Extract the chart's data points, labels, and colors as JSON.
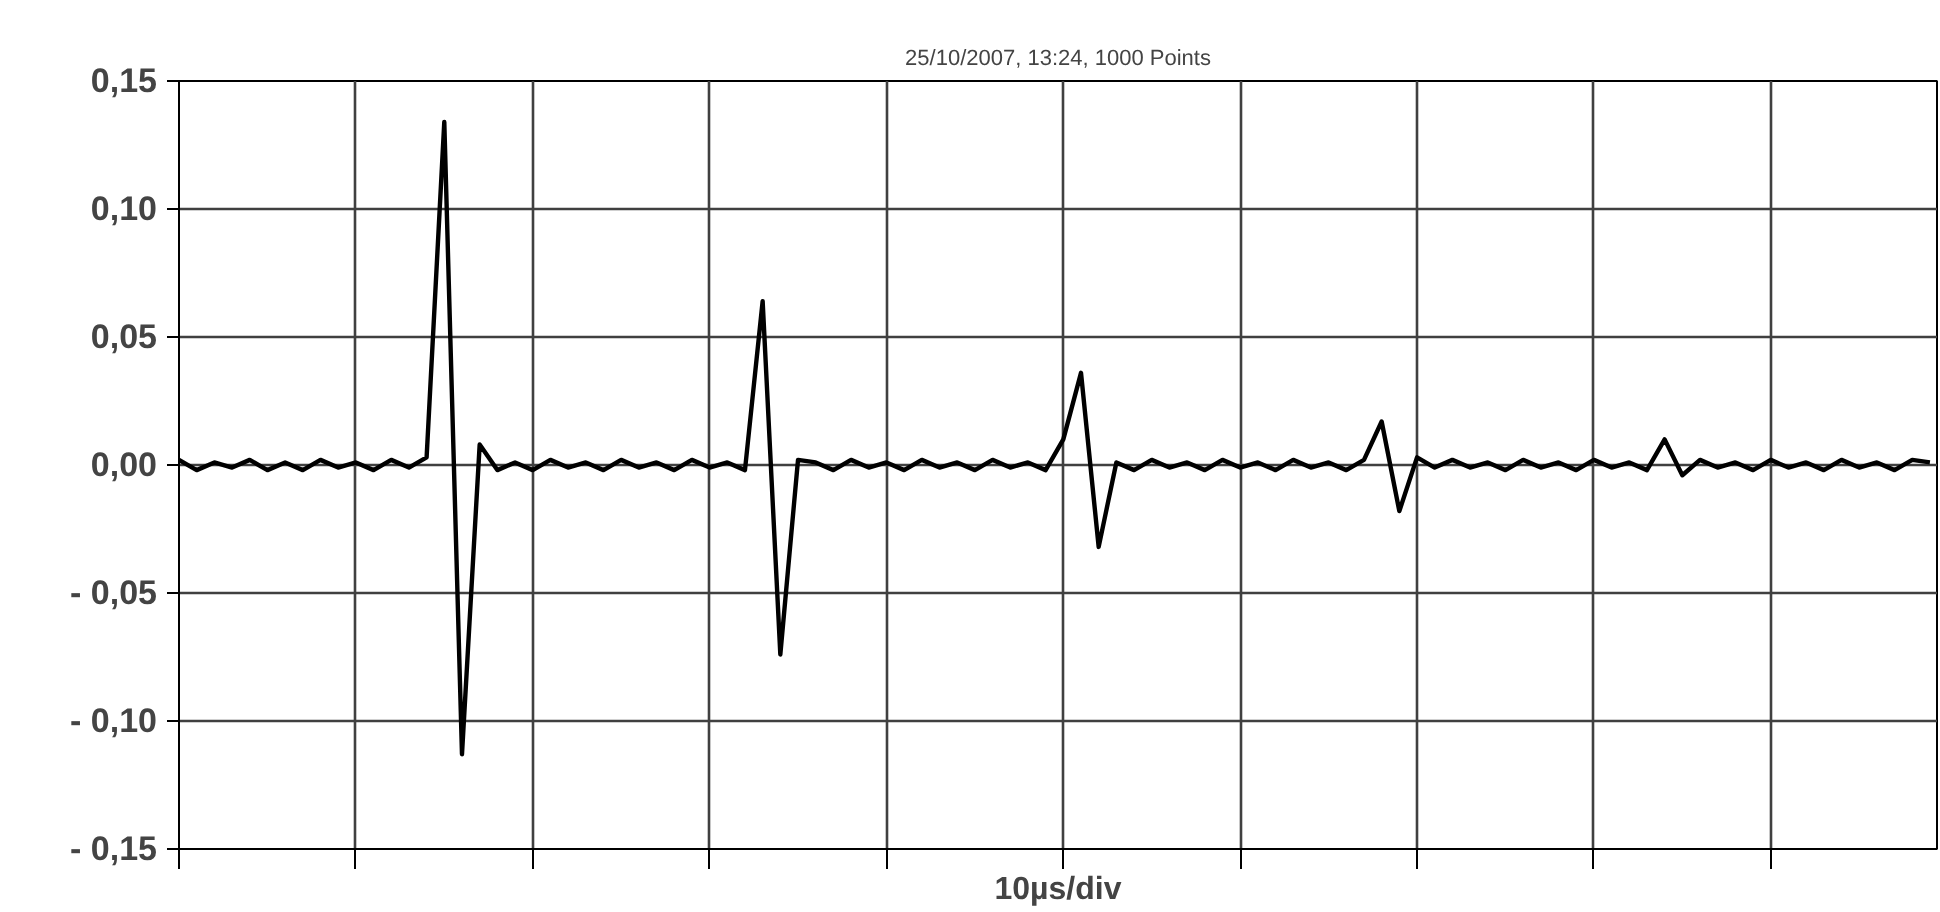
{
  "chart_data": {
    "type": "line",
    "title": "25/10/2007, 13:24, 1000 Points",
    "xlabel": "10µs/div",
    "categories": [
      null,
      null,
      null,
      null,
      null,
      null,
      null,
      null,
      null,
      null,
      null,
      null,
      null,
      null,
      null,
      null,
      null,
      null,
      null,
      null,
      null,
      null,
      null,
      null,
      null,
      null,
      null,
      null,
      null,
      null,
      null,
      null,
      null,
      null,
      null,
      null,
      null,
      null,
      null,
      null,
      null,
      null,
      null,
      null,
      null,
      null,
      null,
      null,
      null,
      null,
      null,
      null,
      null,
      null,
      null,
      null,
      null,
      null,
      null,
      null,
      null,
      null,
      null,
      null,
      null,
      null,
      null,
      null,
      null,
      null,
      null,
      null,
      null,
      null,
      null,
      null,
      null,
      null,
      null,
      null,
      null,
      null,
      null,
      null,
      null,
      null,
      null,
      null,
      null,
      null,
      null,
      null,
      null,
      null,
      null,
      null,
      null,
      null,
      null,
      null
    ],
    "series": [
      {
        "color": "#000000",
        "values": [
          0.002,
          -0.002,
          0.001,
          -0.001,
          0.002,
          -0.002,
          0.001,
          -0.002,
          0.002,
          -0.001,
          0.001,
          -0.002,
          0.002,
          -0.001,
          0.003,
          0.134,
          -0.113,
          0.008,
          -0.002,
          0.001,
          -0.002,
          0.002,
          -0.001,
          0.001,
          -0.002,
          0.002,
          -0.001,
          0.001,
          -0.002,
          0.002,
          -0.001,
          0.001,
          -0.002,
          0.064,
          -0.074,
          0.002,
          0.001,
          -0.002,
          0.002,
          -0.001,
          0.001,
          -0.002,
          0.002,
          -0.001,
          0.001,
          -0.002,
          0.002,
          -0.001,
          0.001,
          -0.002,
          0.01,
          0.036,
          -0.032,
          0.001,
          -0.002,
          0.002,
          -0.001,
          0.001,
          -0.002,
          0.002,
          -0.001,
          0.001,
          -0.002,
          0.002,
          -0.001,
          0.001,
          -0.002,
          0.002,
          0.017,
          -0.018,
          0.003,
          -0.001,
          0.002,
          -0.001,
          0.001,
          -0.002,
          0.002,
          -0.001,
          0.001,
          -0.002,
          0.002,
          -0.001,
          0.001,
          -0.002,
          0.01,
          -0.004,
          0.002,
          -0.001,
          0.001,
          -0.002,
          0.002,
          -0.001,
          0.001,
          -0.002,
          0.002,
          -0.001,
          0.001,
          -0.002,
          0.002,
          0.001
        ]
      }
    ],
    "ylim": [
      -0.15,
      0.15
    ],
    "yticks": [
      {
        "value": -0.15,
        "label": "- 0,15"
      },
      {
        "value": -0.1,
        "label": "- 0,10"
      },
      {
        "value": -0.05,
        "label": "- 0,05"
      },
      {
        "value": 0,
        "label": "0,00"
      },
      {
        "value": 0.05,
        "label": "0,05"
      },
      {
        "value": 0.1,
        "label": "0,10"
      },
      {
        "value": 0.15,
        "label": "0,15"
      }
    ],
    "grid": true,
    "marker": "none",
    "line_style": "solid"
  }
}
